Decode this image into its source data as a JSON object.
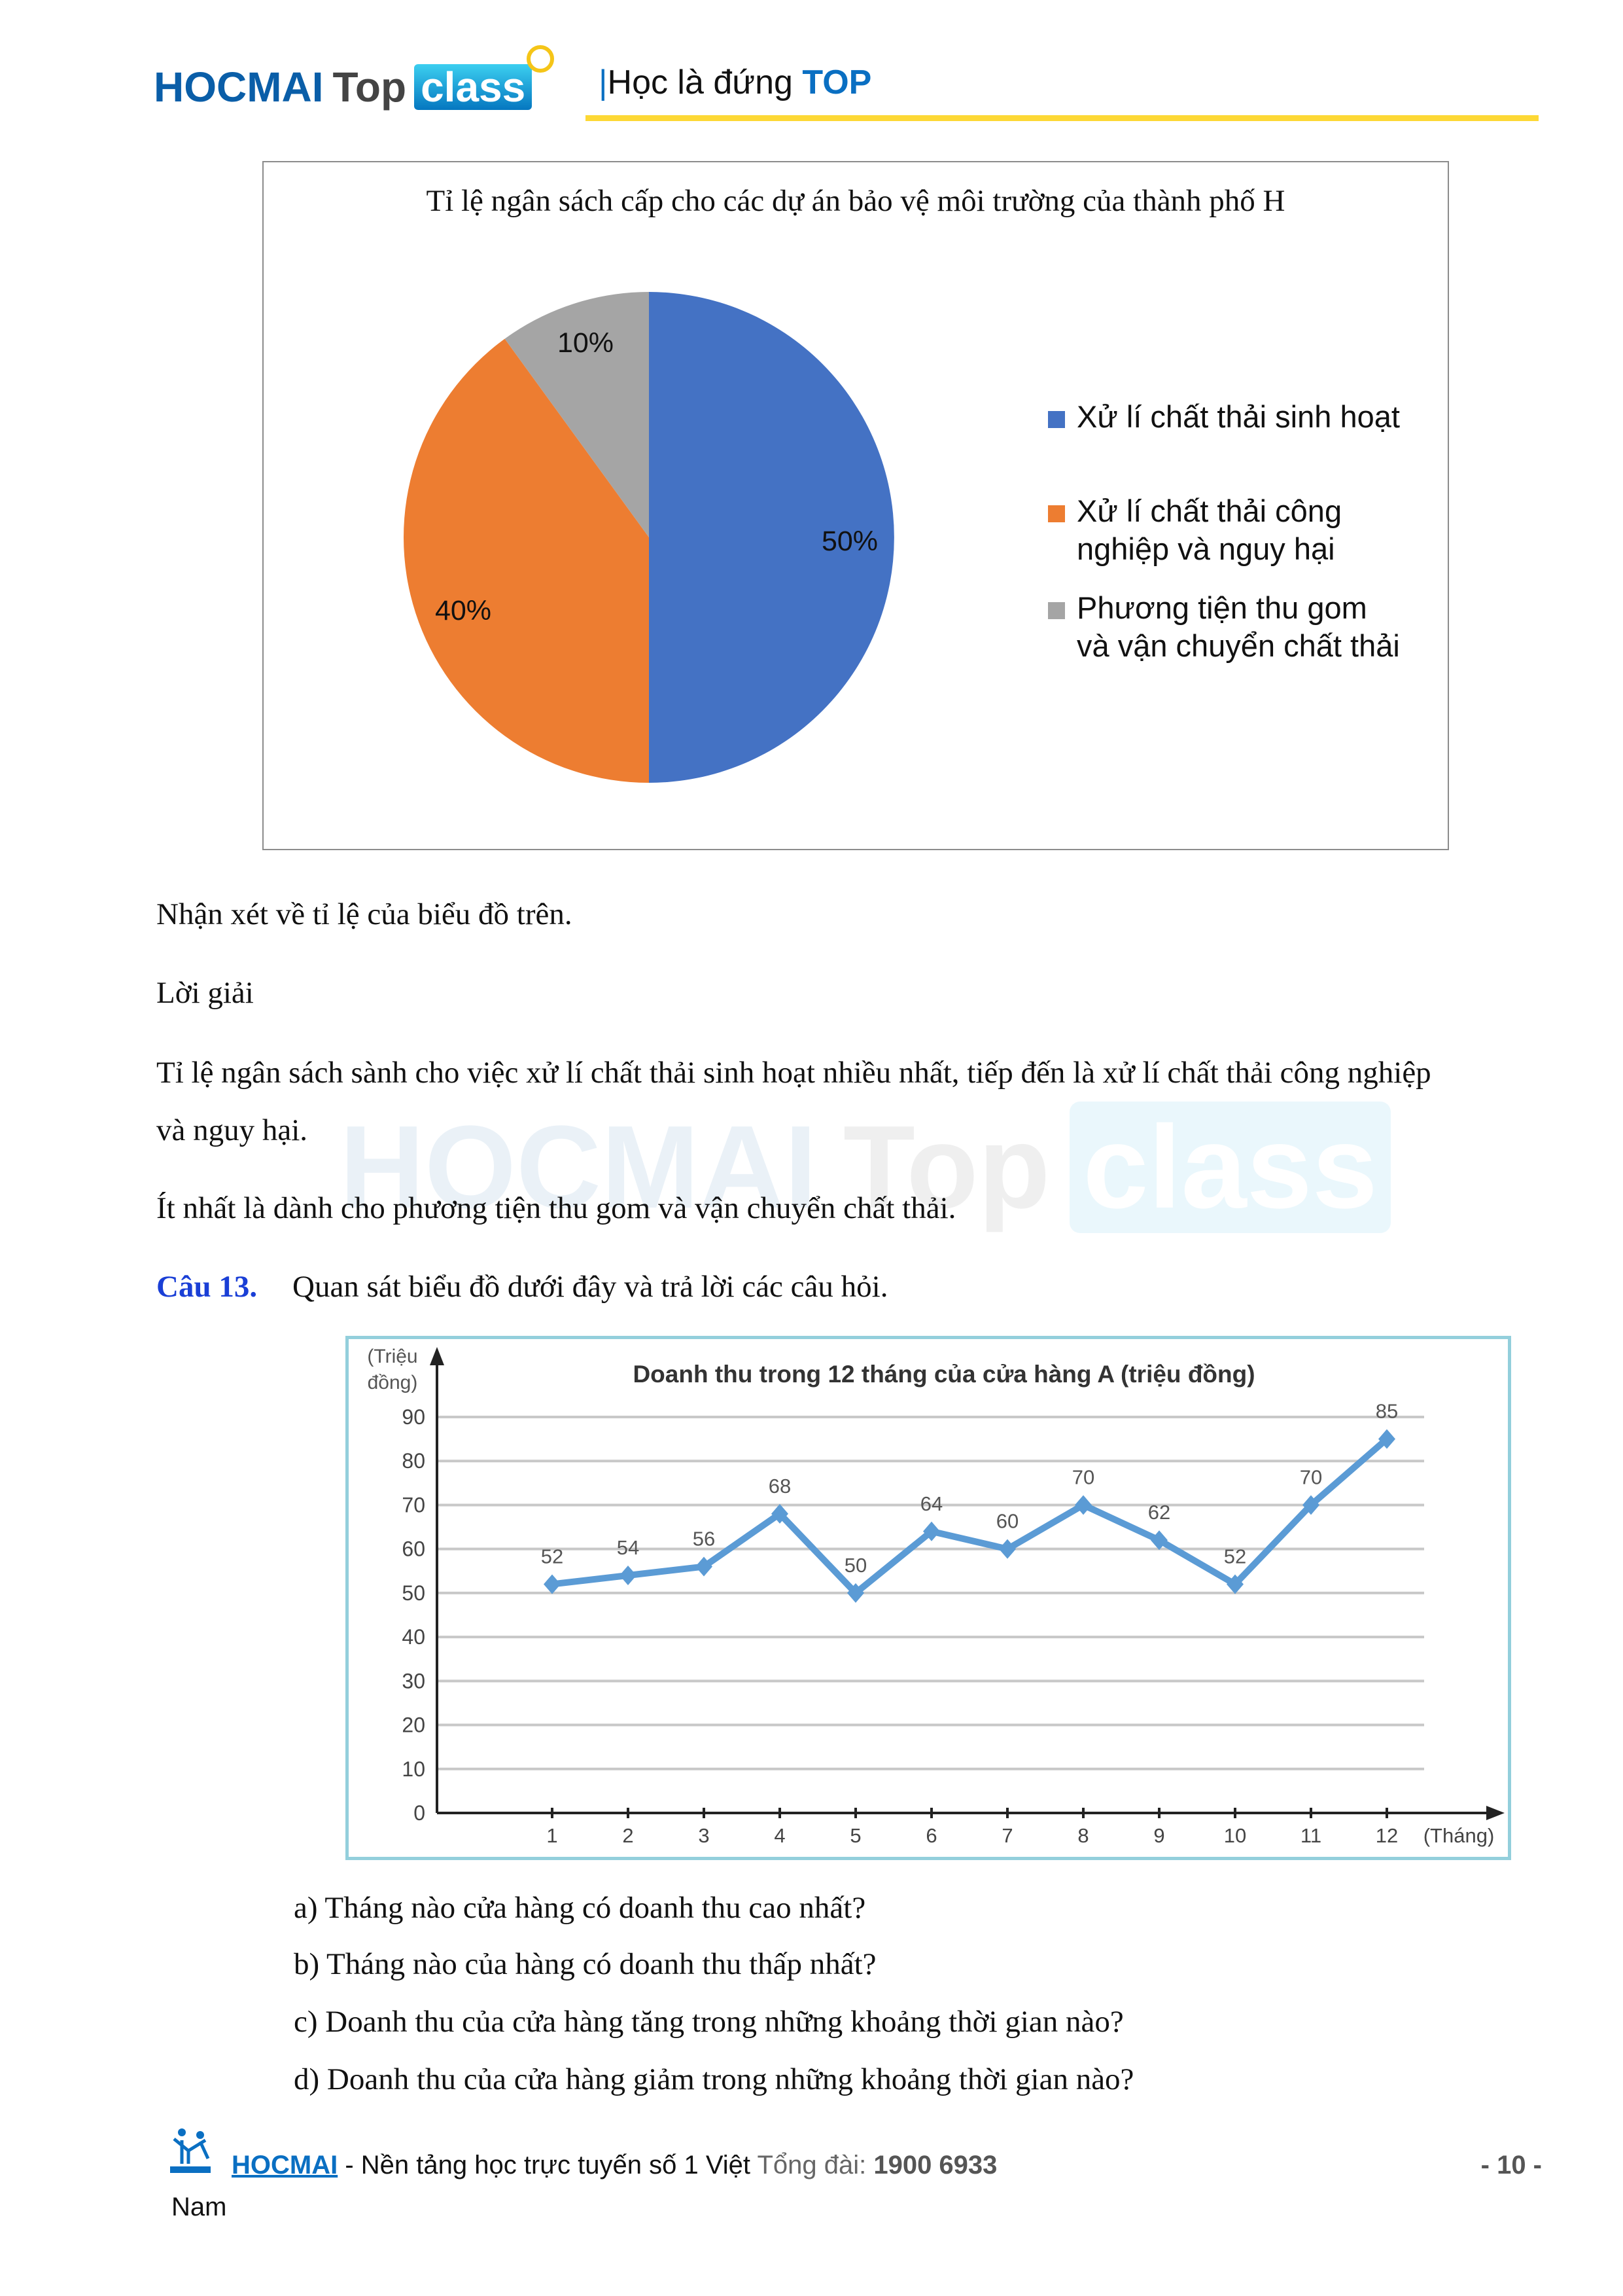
{
  "header": {
    "logo_text": {
      "hocmai": "HOCMAI",
      "top": "Top",
      "class": "class"
    },
    "tagline_bar": "|",
    "tagline": "Học là đứng ",
    "tagline_top": "TOP"
  },
  "colors": {
    "brand_blue": "#0a5ea8",
    "accent_yellow": "#fdd835",
    "question_blue": "#1a3fd6"
  },
  "pie_chart": {
    "type": "pie",
    "title": "Tỉ lệ ngân sách cấp cho các dự án bảo vệ môi trường của thành phố H",
    "slices": [
      {
        "label": "Xử lí chất thải sinh hoạt",
        "label_lines": [
          "Xử lí chất thải sinh hoạt"
        ],
        "value": 50,
        "display": "50%",
        "color": "#4472C4"
      },
      {
        "label": "Xử lí chất thải công nghiệp và nguy hại",
        "label_lines": [
          "Xử lí chất thải công",
          "nghiệp và nguy hại"
        ],
        "value": 40,
        "display": "40%",
        "color": "#ED7D31"
      },
      {
        "label": "Phương tiện thu gom và vận chuyển chất thải",
        "label_lines": [
          "Phương tiện thu gom",
          "và vận chuyển chất thải"
        ],
        "value": 10,
        "display": "10%",
        "color": "#A5A5A5"
      }
    ],
    "legend_position": "right"
  },
  "body": {
    "prompt": "Nhận xét về tỉ lệ của biểu đồ trên.",
    "solution_label": "Lời giải",
    "solution_line1": "Tỉ lệ ngân sách sành cho việc xử lí chất thải sinh hoạt nhiều nhất, tiếp đến là xử lí chất thải công nghiệp",
    "solution_line2": "và nguy hại.",
    "solution_line3": "Ít nhất là dành cho phương tiện thu gom và vận chuyển chất thải.",
    "question_label": "Câu 13.",
    "question_text": "Quan sát biểu đồ dưới đây và trả lời các câu hỏi."
  },
  "watermark": {
    "hocmai": "HOCMAI",
    "top": "Top",
    "class": "class"
  },
  "chart_data": {
    "type": "line",
    "title": "Doanh thu trong 12 tháng của cửa hàng A (triệu đồng)",
    "ylabel_line1": "(Triệu",
    "ylabel_line2": "đồng)",
    "xlabel": "(Tháng)",
    "x": [
      1,
      2,
      3,
      4,
      5,
      6,
      7,
      8,
      9,
      10,
      11,
      12
    ],
    "values": [
      52,
      54,
      56,
      68,
      50,
      64,
      60,
      70,
      62,
      52,
      70,
      85
    ],
    "yticks": [
      0,
      10,
      20,
      30,
      40,
      50,
      60,
      70,
      80,
      90
    ],
    "ylim": [
      0,
      90
    ],
    "grid": true,
    "line_color": "#5B9BD5"
  },
  "questions": [
    "a) Tháng nào cửa hàng có doanh thu cao nhất?",
    "b) Tháng nào của hàng có doanh thu thấp nhất?",
    "c) Doanh thu của cửa hàng tăng trong những khoảng thời gian nào?",
    "d) Doanh thu của cửa hàng giảm trong những khoảng thời gian nào?"
  ],
  "footer": {
    "brand": "HOCMAI",
    "tagline": " - Nền tảng học trực tuyến số 1 Việt ",
    "hotline_label": " Tổng đài: ",
    "hotline": "1900 6933",
    "tagline_cont": "Nam",
    "page": "- 10 -"
  }
}
